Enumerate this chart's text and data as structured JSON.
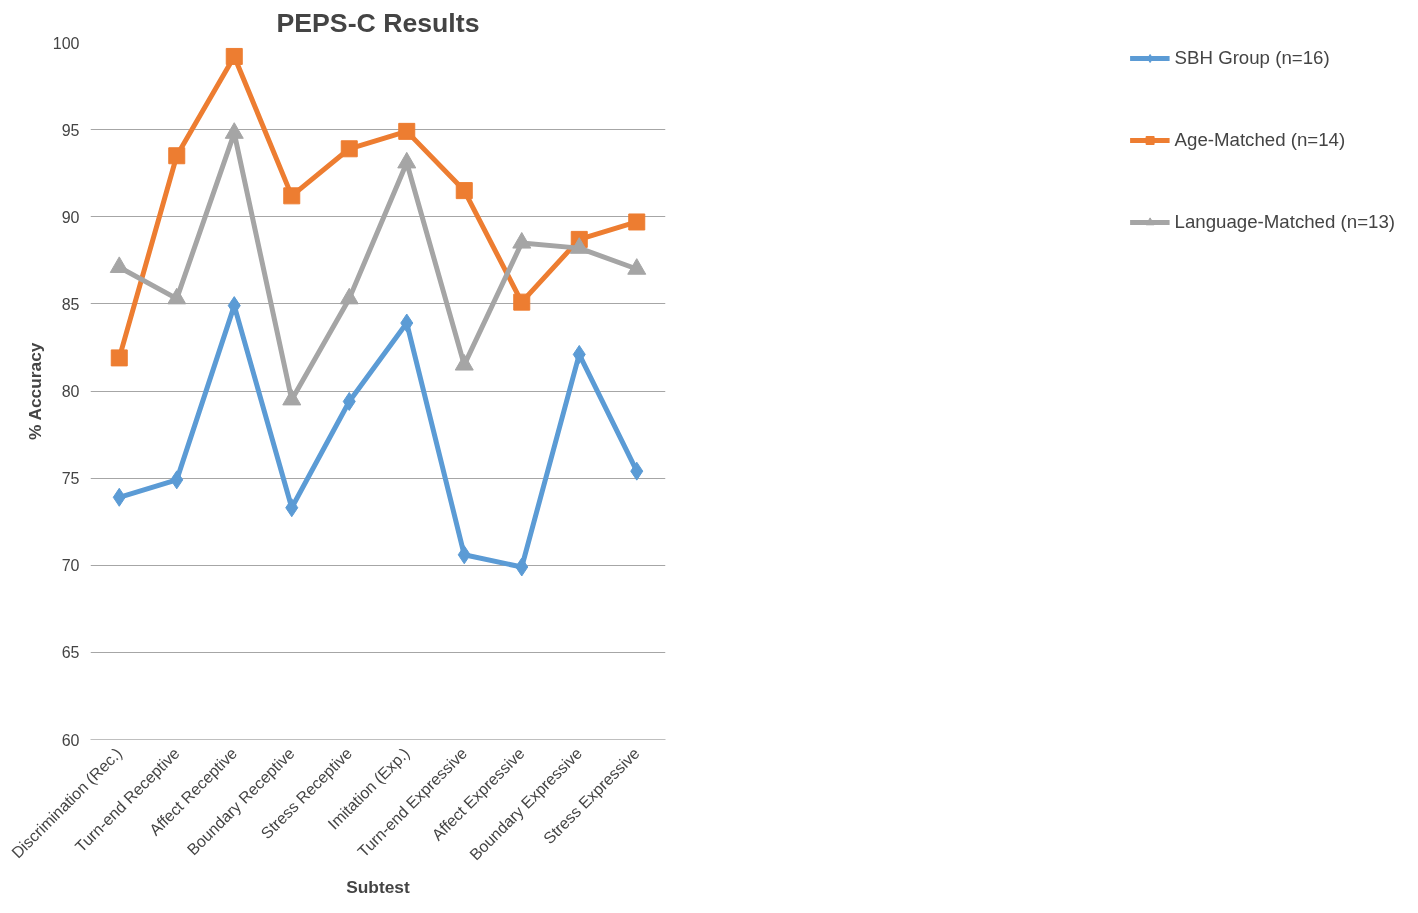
{
  "chart_data": {
    "type": "line",
    "title": "PEPS-C Results",
    "xlabel": "Subtest",
    "ylabel": "% Accuracy",
    "categories": [
      "Discrimination (Rec.)",
      "Turn-end Receptive",
      "Affect Receptive",
      "Boundary Receptive",
      "Stress Receptive",
      "Imitation (Exp.)",
      "Turn-end Expressive",
      "Affect Expressive",
      "Boundary Expressive",
      "Stress Expressive"
    ],
    "series": [
      {
        "name": "SBH Group (n=16)",
        "color": "#5b9bd5",
        "marker": "diamond",
        "values": [
          73.9,
          74.9,
          84.9,
          73.3,
          79.4,
          83.9,
          70.6,
          69.9,
          82.1,
          75.4
        ]
      },
      {
        "name": "Age-Matched (n=14)",
        "color": "#ed7d31",
        "marker": "square",
        "values": [
          81.9,
          93.5,
          99.2,
          91.2,
          93.9,
          94.9,
          91.5,
          85.1,
          88.7,
          89.7
        ]
      },
      {
        "name": "Language-Matched (n=13)",
        "color": "#a5a5a5",
        "marker": "triangle",
        "values": [
          87.1,
          85.3,
          94.8,
          79.5,
          85.3,
          93.1,
          81.5,
          88.5,
          88.2,
          87.0
        ]
      }
    ],
    "ylim": [
      60,
      100
    ],
    "yticks": [
      60,
      65,
      70,
      75,
      80,
      85,
      90,
      95,
      100
    ],
    "grid": "y",
    "legend": "right",
    "line_style": "solid"
  }
}
